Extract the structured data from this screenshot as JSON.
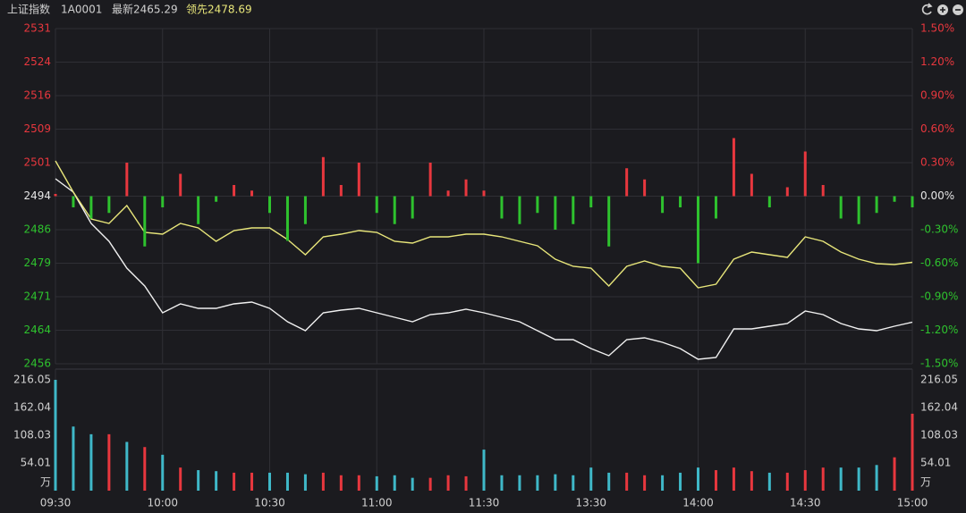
{
  "header": {
    "name": "上证指数",
    "code": "1A0001",
    "latest": "最新2465.29",
    "lead": "领先2478.69"
  },
  "chart_data": [
    {
      "type": "line",
      "x": [
        0,
        5,
        10,
        15,
        20,
        25,
        30,
        35,
        40,
        45,
        50,
        55,
        60,
        65,
        70,
        75,
        80,
        85,
        90,
        95,
        100,
        105,
        110,
        115,
        120,
        125,
        130,
        135,
        140,
        145,
        150,
        155,
        160,
        165,
        170,
        175,
        180,
        185,
        190,
        195,
        200,
        205,
        210,
        215,
        220,
        225,
        230,
        235,
        240
      ],
      "xlim": [
        0,
        240
      ],
      "ylim": [
        2456,
        2531
      ],
      "yticks": [
        2456,
        {
          "value": 2463.5,
          "label": "2464"
        },
        2471,
        {
          "value": 2478.5,
          "label": "2479"
        },
        2486,
        {
          "value": 2493.5,
          "label": "2494"
        },
        2501,
        {
          "value": 2508.5,
          "label": "2509"
        },
        2516,
        {
          "value": 2523.5,
          "label": "2524"
        },
        2531
      ],
      "y2lim": [
        -1.5,
        1.5
      ],
      "y2ticks": [
        {
          "value": -1.5,
          "label": "-1.50%"
        },
        {
          "value": -1.2,
          "label": "-1.20%"
        },
        {
          "value": -0.9,
          "label": "-0.90%"
        },
        {
          "value": -0.6,
          "label": "-0.60%"
        },
        {
          "value": -0.3,
          "label": "-0.30%"
        },
        {
          "value": 0,
          "label": "0.00%"
        },
        {
          "value": 0.3,
          "label": "0.30%"
        },
        {
          "value": 0.6,
          "label": "0.60%"
        },
        {
          "value": 0.9,
          "label": "0.90%"
        },
        {
          "value": 1.2,
          "label": "1.20%"
        },
        {
          "value": 1.5,
          "label": "1.50%"
        }
      ],
      "grid": true,
      "up_color": "#e8373e",
      "down_color": "#2ec22e",
      "flat_color": "#e6e6e6",
      "series": [
        {
          "color": "#f0f0f0",
          "values": [
            2497.4,
            2494.4,
            2487.4,
            2483.4,
            2477.4,
            2473.4,
            2467.4,
            2469.4,
            2468.4,
            2468.4,
            2469.4,
            2469.8,
            2468.4,
            2465.4,
            2463.4,
            2467.4,
            2468,
            2468.4,
            2467.4,
            2466.4,
            2465.4,
            2467,
            2467.4,
            2468.2,
            2467.4,
            2466.4,
            2465.4,
            2463.4,
            2461.4,
            2461.4,
            2459.4,
            2457.8,
            2461.4,
            2461.8,
            2460.8,
            2459.4,
            2457,
            2457.4,
            2463.8,
            2463.8,
            2464.4,
            2465,
            2467.8,
            2467,
            2465,
            2463.8,
            2463.4,
            2464.4,
            2465.3
          ]
        },
        {
          "color": "#e8e67a",
          "values": [
            2501.4,
            2494.4,
            2488.4,
            2487.4,
            2491.4,
            2485.4,
            2485,
            2487.4,
            2486.4,
            2483.4,
            2485.8,
            2486.4,
            2486.4,
            2483.8,
            2480.4,
            2484.4,
            2485,
            2485.8,
            2485.4,
            2483.4,
            2483,
            2484.4,
            2484.4,
            2485,
            2485,
            2484.4,
            2483.4,
            2482.4,
            2479.4,
            2477.8,
            2477.4,
            2473.4,
            2477.8,
            2479,
            2477.8,
            2477.4,
            2473,
            2473.8,
            2479.4,
            2481,
            2480.4,
            2479.8,
            2484.4,
            2483.4,
            2481,
            2479.4,
            2478.4,
            2478.2,
            2478.7
          ]
        },
        {
          "type": "bar",
          "axis": "y2",
          "values": [
            0.02,
            -0.1,
            -0.2,
            -0.15,
            0.3,
            -0.45,
            -0.1,
            0.2,
            -0.25,
            -0.05,
            0.1,
            0.05,
            -0.15,
            -0.4,
            -0.25,
            0.35,
            0.1,
            0.3,
            -0.15,
            -0.25,
            -0.2,
            0.3,
            0.05,
            0.15,
            0.05,
            -0.2,
            -0.25,
            -0.15,
            -0.3,
            -0.25,
            -0.1,
            -0.45,
            0.25,
            0.15,
            -0.15,
            -0.1,
            -0.6,
            -0.2,
            0.52,
            0.2,
            -0.1,
            0.08,
            0.4,
            0.1,
            -0.2,
            -0.25,
            -0.15,
            -0.05,
            -0.1
          ]
        }
      ]
    },
    {
      "type": "bar",
      "x": [
        0,
        5,
        10,
        15,
        20,
        25,
        30,
        35,
        40,
        45,
        50,
        55,
        60,
        65,
        70,
        75,
        80,
        85,
        90,
        95,
        100,
        105,
        110,
        115,
        120,
        125,
        130,
        135,
        140,
        145,
        150,
        155,
        160,
        165,
        170,
        175,
        180,
        185,
        190,
        195,
        200,
        205,
        210,
        215,
        220,
        225,
        230,
        235,
        240
      ],
      "xlim": [
        0,
        240
      ],
      "xticks": [
        {
          "value": 0,
          "label": "09:30"
        },
        {
          "value": 30,
          "label": "10:00"
        },
        {
          "value": 60,
          "label": "10:30"
        },
        {
          "value": 90,
          "label": "11:00"
        },
        {
          "value": 120,
          "label": "11:30"
        },
        {
          "value": 150,
          "label": "13:30"
        },
        {
          "value": 180,
          "label": "14:00"
        },
        {
          "value": 210,
          "label": "14:30"
        },
        {
          "value": 240,
          "label": "15:00"
        }
      ],
      "ylim": [
        0,
        216.05
      ],
      "yticks": [
        54.01,
        108.03,
        162.04,
        216.05
      ],
      "unit": "万",
      "values": [
        216.05,
        125,
        110,
        110,
        95,
        85,
        70,
        45,
        40,
        38,
        35,
        35,
        35,
        35,
        32,
        35,
        30,
        30,
        28,
        30,
        25,
        25,
        30,
        28,
        80,
        30,
        30,
        30,
        32,
        30,
        45,
        35,
        35,
        30,
        30,
        35,
        45,
        40,
        45,
        38,
        35,
        35,
        40,
        45,
        45,
        45,
        50,
        65,
        150
      ],
      "colors": [
        "#3fb8c8",
        "#3fb8c8",
        "#3fb8c8",
        "#e8373e",
        "#3fb8c8",
        "#e8373e",
        "#3fb8c8",
        "#e8373e",
        "#3fb8c8",
        "#3fb8c8",
        "#e8373e",
        "#e8373e",
        "#3fb8c8",
        "#3fb8c8",
        "#3fb8c8",
        "#e8373e",
        "#e8373e",
        "#e8373e",
        "#3fb8c8",
        "#3fb8c8",
        "#3fb8c8",
        "#e8373e",
        "#e8373e",
        "#e8373e",
        "#3fb8c8",
        "#3fb8c8",
        "#3fb8c8",
        "#3fb8c8",
        "#3fb8c8",
        "#3fb8c8",
        "#3fb8c8",
        "#3fb8c8",
        "#e8373e",
        "#e8373e",
        "#3fb8c8",
        "#3fb8c8",
        "#3fb8c8",
        "#e8373e",
        "#e8373e",
        "#e8373e",
        "#3fb8c8",
        "#e8373e",
        "#e8373e",
        "#e8373e",
        "#3fb8c8",
        "#3fb8c8",
        "#3fb8c8",
        "#e8373e",
        "#e8373e"
      ]
    }
  ]
}
